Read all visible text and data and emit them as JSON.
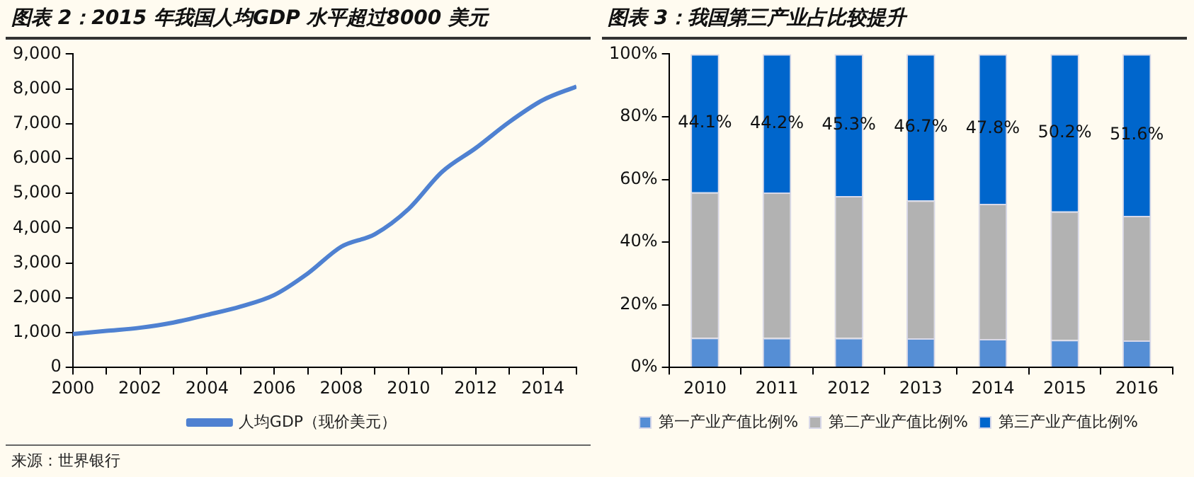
{
  "chart_data": [
    {
      "type": "line",
      "title": "图表 2：2015 年我国人均GDP 水平超过8000 美元",
      "x": [
        2000,
        2001,
        2002,
        2003,
        2004,
        2005,
        2006,
        2007,
        2008,
        2009,
        2010,
        2011,
        2012,
        2013,
        2014,
        2015
      ],
      "series": [
        {
          "name": "人均GDP（现价美元）",
          "color": "#4f81d1",
          "values": [
            960,
            1050,
            1140,
            1290,
            1510,
            1750,
            2080,
            2700,
            3470,
            3830,
            4550,
            5620,
            6300,
            7050,
            7680,
            8070
          ]
        }
      ],
      "xlim": [
        2000,
        2015
      ],
      "xticks": [
        2000,
        {
          "value": 2001,
          "label": null
        },
        2002,
        {
          "value": 2003,
          "label": null
        },
        2004,
        {
          "value": 2005,
          "label": null
        },
        2006,
        {
          "value": 2007,
          "label": null
        },
        2008,
        {
          "value": 2009,
          "label": null
        },
        2010,
        {
          "value": 2011,
          "label": null
        },
        2012,
        {
          "value": 2013,
          "label": null
        },
        2014,
        {
          "value": 2015,
          "label": null
        }
      ],
      "ylim": [
        0,
        9000
      ],
      "yticks": [
        0,
        {
          "value": 1000,
          "label": "1,000"
        },
        {
          "value": 2000,
          "label": "2,000"
        },
        {
          "value": 3000,
          "label": "3,000"
        },
        {
          "value": 4000,
          "label": "4,000"
        },
        {
          "value": 5000,
          "label": "5,000"
        },
        {
          "value": 6000,
          "label": "6,000"
        },
        {
          "value": 7000,
          "label": "7,000"
        },
        {
          "value": 8000,
          "label": "8,000"
        },
        {
          "value": 9000,
          "label": "9,000"
        }
      ],
      "grid": false,
      "legend": "bottom",
      "marker": "none",
      "line_style": "solid",
      "annotations": [
        "来源：世界银行"
      ]
    },
    {
      "type": "bar",
      "title": "图表 3：我国第三产业占比较提升",
      "stacked": true,
      "categories": [
        "2010",
        "2011",
        "2012",
        "2013",
        "2014",
        "2015",
        "2016"
      ],
      "series": [
        {
          "name": "第一产业产值比例%",
          "color": "#558ed5",
          "values": [
            9.5,
            9.4,
            9.4,
            9.3,
            9.1,
            8.8,
            8.6
          ]
        },
        {
          "name": "第二产业产值比例%",
          "color": "#b2b2b2",
          "values": [
            46.4,
            46.4,
            45.3,
            44.0,
            43.1,
            41.0,
            39.8
          ]
        },
        {
          "name": "第三产业产值比例%",
          "color": "#0066cc",
          "values": [
            44.1,
            44.2,
            45.3,
            46.7,
            47.8,
            50.2,
            51.6
          ],
          "value_labels": [
            "44.1%",
            "44.2%",
            "45.3%",
            "46.7%",
            "47.8%",
            "50.2%",
            "51.6%"
          ]
        }
      ],
      "ylim": [
        0,
        100
      ],
      "yticks": [
        {
          "value": 0,
          "label": "0%"
        },
        {
          "value": 20,
          "label": "20%"
        },
        {
          "value": 40,
          "label": "40%"
        },
        {
          "value": 60,
          "label": "60%"
        },
        {
          "value": 80,
          "label": "80%"
        },
        {
          "value": 100,
          "label": "100%"
        }
      ],
      "grid": false,
      "legend": "bottom"
    }
  ]
}
